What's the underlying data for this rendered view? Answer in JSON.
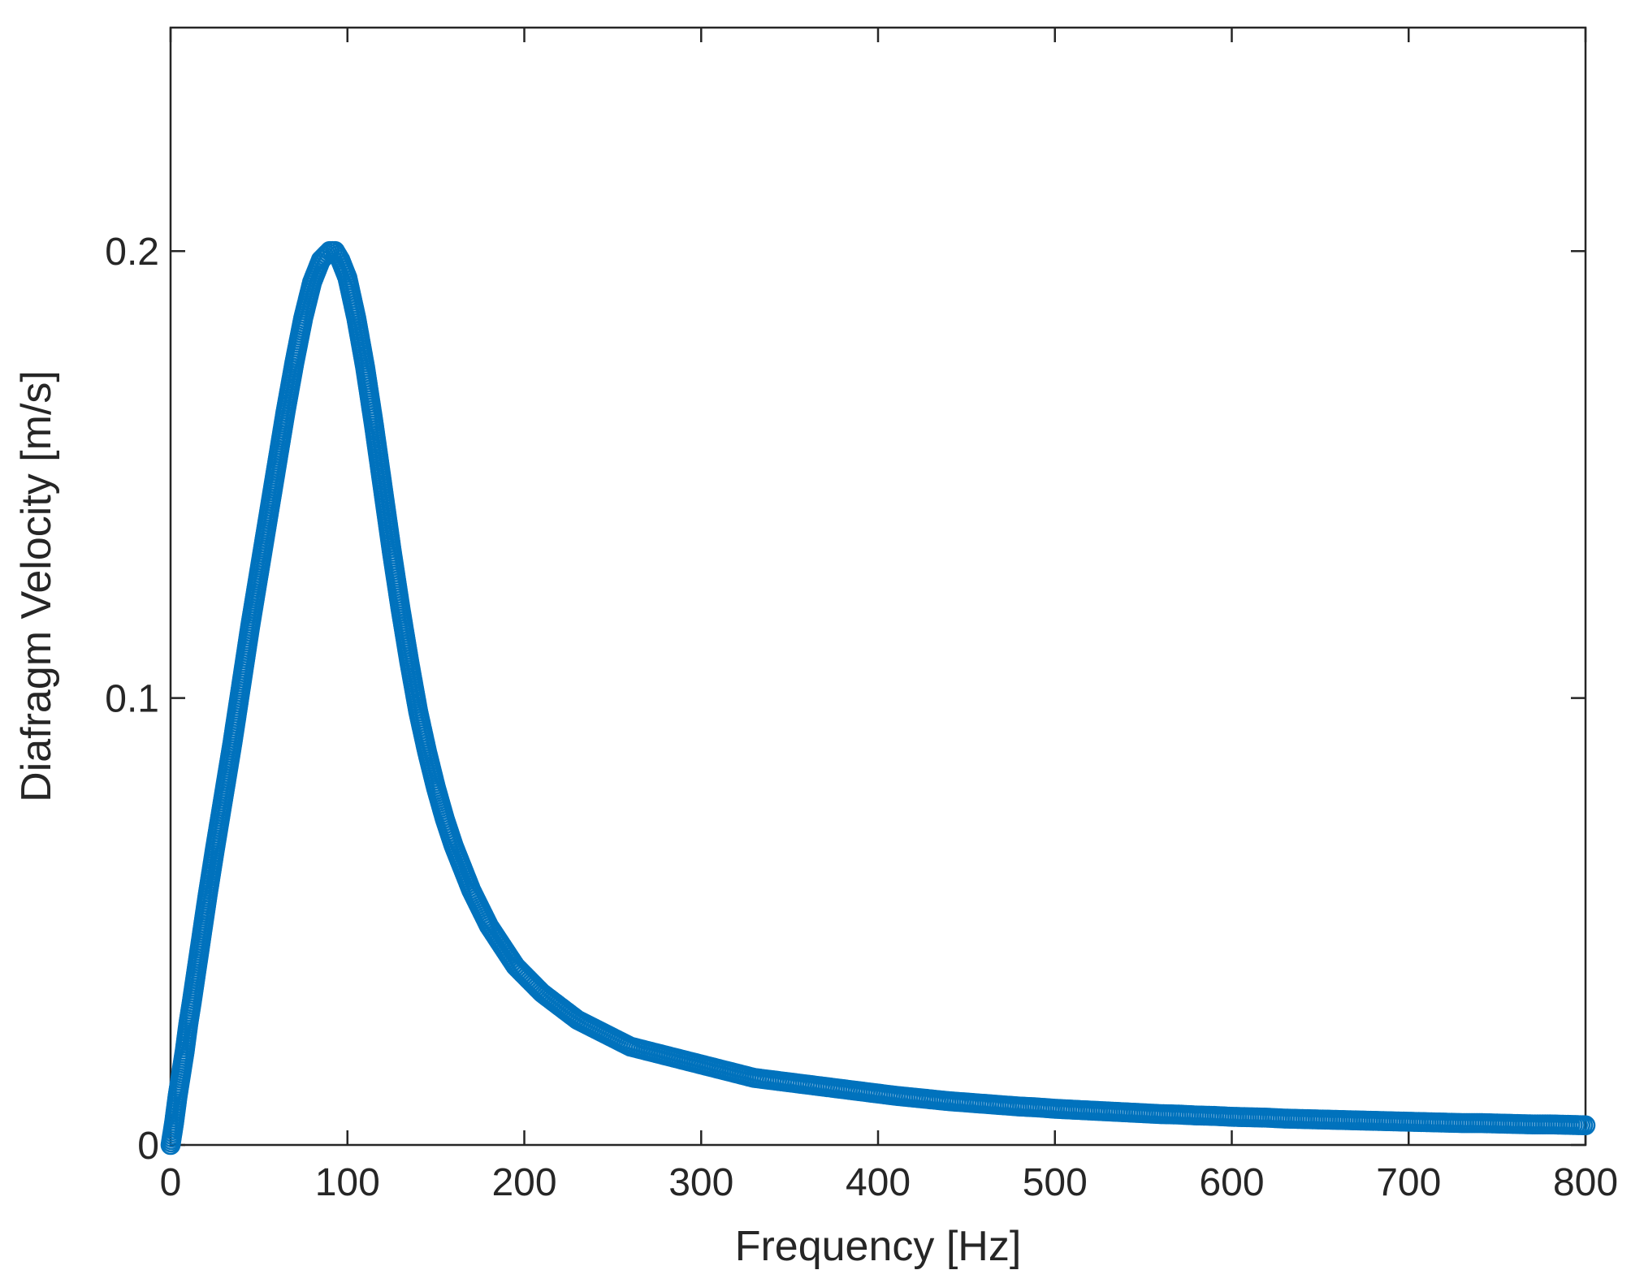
{
  "chart_data": {
    "type": "scatter",
    "title": "",
    "xlabel": "Frequency [Hz]",
    "ylabel": "Diafragm Velocity [m/s]",
    "xlim": [
      0,
      800
    ],
    "ylim": [
      0,
      0.25
    ],
    "xticks": [
      0,
      100,
      200,
      300,
      400,
      500,
      600,
      700,
      800
    ],
    "xtick_labels": [
      "0",
      "100",
      "200",
      "300",
      "400",
      "500",
      "600",
      "700",
      "800"
    ],
    "yticks": [
      0,
      0.1,
      0.2
    ],
    "ytick_labels": [
      "0",
      "0.1",
      "0.2"
    ],
    "grid": false,
    "legend": "none",
    "marker": "circle-open",
    "color": "#0072BD",
    "series": [
      {
        "x": [
          0,
          2,
          4,
          6,
          8,
          10,
          12,
          15,
          18,
          21,
          25,
          30,
          35,
          40,
          45,
          50,
          55,
          60,
          65,
          70,
          75,
          80,
          85,
          90,
          93,
          96,
          100,
          105,
          110,
          115,
          120,
          125,
          130,
          135,
          140,
          145,
          150,
          155,
          160,
          165,
          170,
          175,
          180,
          185,
          190,
          195,
          200,
          210,
          220,
          230,
          240,
          250,
          260,
          270,
          280,
          290,
          300,
          310,
          320,
          330,
          340,
          350,
          360,
          370,
          380,
          390,
          400,
          410,
          420,
          430,
          440,
          450,
          460,
          470,
          480,
          490,
          500,
          510,
          520,
          530,
          540,
          550,
          560,
          570,
          580,
          590,
          600,
          610,
          620,
          630,
          640,
          650,
          660,
          670,
          680,
          690,
          700,
          710,
          720,
          730,
          740,
          750,
          760,
          770,
          780,
          790,
          800
        ],
        "y": [
          0.0,
          0.005,
          0.011,
          0.016,
          0.021,
          0.027,
          0.032,
          0.04,
          0.048,
          0.056,
          0.066,
          0.078,
          0.09,
          0.103,
          0.116,
          0.128,
          0.14,
          0.152,
          0.164,
          0.175,
          0.185,
          0.193,
          0.198,
          0.2,
          0.2,
          0.198,
          0.194,
          0.185,
          0.174,
          0.161,
          0.147,
          0.133,
          0.12,
          0.108,
          0.097,
          0.088,
          0.08,
          0.073,
          0.067,
          0.062,
          0.057,
          0.053,
          0.049,
          0.046,
          0.043,
          0.04,
          0.038,
          0.034,
          0.031,
          0.028,
          0.026,
          0.024,
          0.022,
          0.021,
          0.02,
          0.019,
          0.018,
          0.017,
          0.016,
          0.015,
          0.0145,
          0.014,
          0.0135,
          0.013,
          0.0125,
          0.012,
          0.0115,
          0.011,
          0.0106,
          0.0102,
          0.0098,
          0.0095,
          0.0092,
          0.0089,
          0.0086,
          0.0084,
          0.0081,
          0.0079,
          0.0077,
          0.0075,
          0.0073,
          0.0071,
          0.0069,
          0.0068,
          0.0066,
          0.0065,
          0.0063,
          0.0062,
          0.0061,
          0.0059,
          0.0058,
          0.0057,
          0.0056,
          0.0055,
          0.0054,
          0.0053,
          0.0052,
          0.0051,
          0.005,
          0.0049,
          0.0049,
          0.0048,
          0.0047,
          0.0046,
          0.0046,
          0.0045,
          0.0044
        ]
      }
    ]
  }
}
